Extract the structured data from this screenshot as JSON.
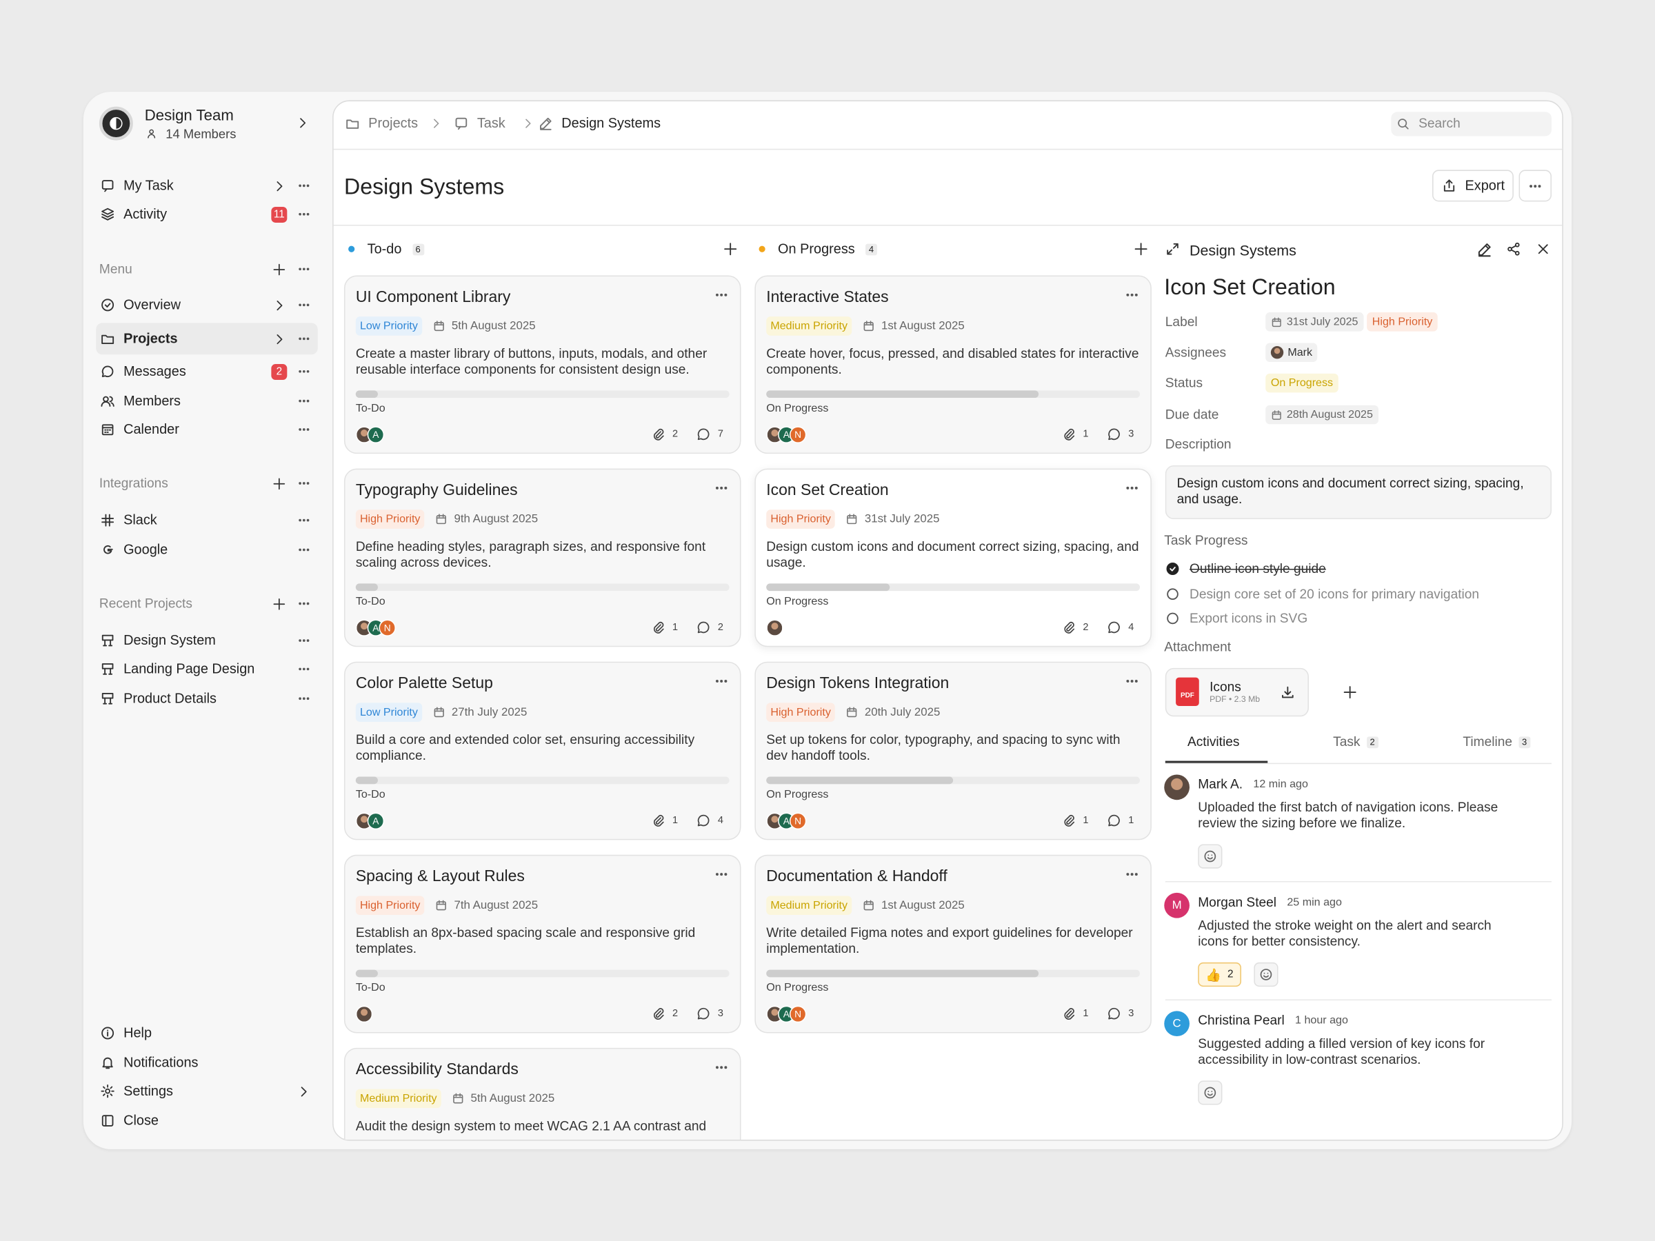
{
  "sidebar": {
    "team": {
      "name": "Design Team",
      "members": "14 Members"
    },
    "top": [
      {
        "label": "My Task"
      },
      {
        "label": "Activity",
        "badge": 11
      }
    ],
    "menu": {
      "title": "Menu",
      "items": [
        {
          "label": "Overview"
        },
        {
          "label": "Projects",
          "active": true
        },
        {
          "label": "Messages",
          "badge": 2
        },
        {
          "label": "Members"
        },
        {
          "label": "Calender"
        }
      ]
    },
    "integrations": {
      "title": "Integrations",
      "items": [
        {
          "label": "Slack"
        },
        {
          "label": "Google"
        }
      ]
    },
    "recent": {
      "title": "Recent Projects",
      "items": [
        {
          "label": "Design System"
        },
        {
          "label": "Landing Page Design"
        },
        {
          "label": "Product Details"
        }
      ]
    },
    "bottom": [
      {
        "label": "Help"
      },
      {
        "label": "Notifications"
      },
      {
        "label": "Settings"
      },
      {
        "label": "Close"
      }
    ]
  },
  "breadcrumb": [
    "Projects",
    "Task",
    "Design Systems"
  ],
  "search": "Search",
  "page_title": "Design Systems",
  "export": "Export",
  "columns": [
    {
      "title": "To-do",
      "count": 6,
      "color": "#2d9cdb",
      "cards": [
        {
          "title": "UI Component Library",
          "priority": {
            "label": "Low Priority",
            "color": "#2f86d6",
            "bg": "#e6f1fb"
          },
          "date": "5th August 2025",
          "description": "Create a master library of buttons, inputs, modals, and other reusable interface components for consistent design use.",
          "progress": 6,
          "status": "To-Do",
          "avatars": [
            {
              "photo": true
            },
            {
              "initial": "A",
              "color": "#1e6b4f"
            }
          ],
          "attachments": 2,
          "comments": 7
        },
        {
          "title": "Typography Guidelines",
          "priority": {
            "label": "High Priority",
            "color": "#d9602f",
            "bg": "#fdece4"
          },
          "date": "9th August 2025",
          "description": "Define heading styles, paragraph sizes, and responsive font scaling across devices.",
          "progress": 6,
          "status": "To-Do",
          "avatars": [
            {
              "photo": true
            },
            {
              "initial": "A",
              "color": "#1e6b4f"
            },
            {
              "initial": "N",
              "color": "#e06a2b"
            }
          ],
          "attachments": 1,
          "comments": 2
        },
        {
          "title": "Color Palette Setup",
          "priority": {
            "label": "Low Priority",
            "color": "#2f86d6",
            "bg": "#e6f1fb"
          },
          "date": "27th July 2025",
          "description": "Build a core and extended color set, ensuring accessibility compliance.",
          "progress": 6,
          "status": "To-Do",
          "avatars": [
            {
              "photo": true
            },
            {
              "initial": "A",
              "color": "#1e6b4f"
            }
          ],
          "attachments": 1,
          "comments": 4
        },
        {
          "title": "Spacing & Layout Rules",
          "priority": {
            "label": "High Priority",
            "color": "#d9602f",
            "bg": "#fdece4"
          },
          "date": "7th August 2025",
          "description": "Establish an 8px-based spacing scale and responsive grid templates.",
          "progress": 6,
          "status": "To-Do",
          "avatars": [
            {
              "photo": true
            }
          ],
          "attachments": 2,
          "comments": 3
        },
        {
          "title": "Accessibility Standards",
          "priority": {
            "label": "Medium Priority",
            "color": "#c9a400",
            "bg": "#fbf6dc"
          },
          "date": "5th August 2025",
          "description": "Audit the design system to meet WCAG 2.1 AA contrast and"
        }
      ]
    },
    {
      "title": "On Progress",
      "count": 4,
      "color": "#f2a51a",
      "cards": [
        {
          "title": "Interactive States",
          "priority": {
            "label": "Medium Priority",
            "color": "#c9a400",
            "bg": "#fbf6dc"
          },
          "date": "1st August 2025",
          "description": "Create hover, focus, pressed, and disabled states for interactive components.",
          "progress": 73,
          "status": "On Progress",
          "avatars": [
            {
              "photo": true
            },
            {
              "initial": "A",
              "color": "#1e6b4f"
            },
            {
              "initial": "N",
              "color": "#e06a2b"
            }
          ],
          "attachments": 1,
          "comments": 3
        },
        {
          "title": "Icon Set Creation",
          "priority": {
            "label": "High Priority",
            "color": "#d9602f",
            "bg": "#fdece4"
          },
          "date": "31st July 2025",
          "description": "Design custom icons and document correct sizing, spacing, and usage.",
          "progress": 33,
          "status": "On Progress",
          "avatars": [
            {
              "photo": true
            }
          ],
          "attachments": 2,
          "comments": 4
        },
        {
          "title": "Design Tokens Integration",
          "priority": {
            "label": "High Priority",
            "color": "#d9602f",
            "bg": "#fdece4"
          },
          "date": "20th July 2025",
          "description": "Set up tokens for color, typography, and spacing to sync with dev handoff tools.",
          "progress": 50,
          "status": "On Progress",
          "avatars": [
            {
              "photo": true
            },
            {
              "initial": "A",
              "color": "#1e6b4f"
            },
            {
              "initial": "N",
              "color": "#e06a2b"
            }
          ],
          "attachments": 1,
          "comments": 1
        },
        {
          "title": "Documentation & Handoff",
          "priority": {
            "label": "Medium Priority",
            "color": "#c9a400",
            "bg": "#fbf6dc"
          },
          "date": "1st August 2025",
          "description": "Write detailed Figma notes and export guidelines for developer implementation.",
          "progress": 73,
          "status": "On Progress",
          "avatars": [
            {
              "photo": true
            },
            {
              "initial": "A",
              "color": "#1e6b4f"
            },
            {
              "initial": "N",
              "color": "#e06a2b"
            }
          ],
          "attachments": 1,
          "comments": 3
        }
      ]
    }
  ],
  "detail": {
    "header": "Design Systems",
    "title": "Icon Set Creation",
    "fields": {
      "label_title": "Label",
      "label_date": "31st July 2025",
      "label_priority": "High Priority",
      "assignees_title": "Assignees",
      "assignee": "Mark",
      "status_title": "Status",
      "status": "On Progress",
      "due_title": "Due date",
      "due": "28th August 2025",
      "description_title": "Description",
      "description": "Design custom icons and document correct sizing, spacing, and usage."
    },
    "progress_title": "Task Progress",
    "checklist": [
      {
        "text": "Outline icon style guide",
        "done": true
      },
      {
        "text": "Design core set of 20 icons for primary navigation",
        "done": false
      },
      {
        "text": "Export icons in SVG",
        "done": false
      }
    ],
    "attachment_title": "Attachment",
    "attachment": {
      "icon": "PDF",
      "name": "Icons",
      "meta": "PDF • 2.3 Mb"
    },
    "tabs": [
      {
        "label": "Activities"
      },
      {
        "label": "Task",
        "count": 2
      },
      {
        "label": "Timeline",
        "count": 3
      }
    ],
    "activities": [
      {
        "name": "Mark A.",
        "time": "12 min ago",
        "text": "Uploaded the first batch of navigation icons. Please review the sizing before we finalize.",
        "avatar": {
          "photo": true
        }
      },
      {
        "name": "Morgan Steel",
        "time": "25 min ago",
        "text": "Adjusted the stroke weight on the alert and search icons for better consistency.",
        "avatar": {
          "initial": "M",
          "color": "#d6336c"
        },
        "reactions": [
          {
            "emoji": "👍",
            "count": 2
          }
        ]
      },
      {
        "name": "Christina Pearl",
        "time": "1 hour ago",
        "text": "Suggested adding a filled version of key icons for accessibility in low-contrast scenarios.",
        "avatar": {
          "initial": "C",
          "color": "#2d9cdb"
        }
      }
    ]
  }
}
